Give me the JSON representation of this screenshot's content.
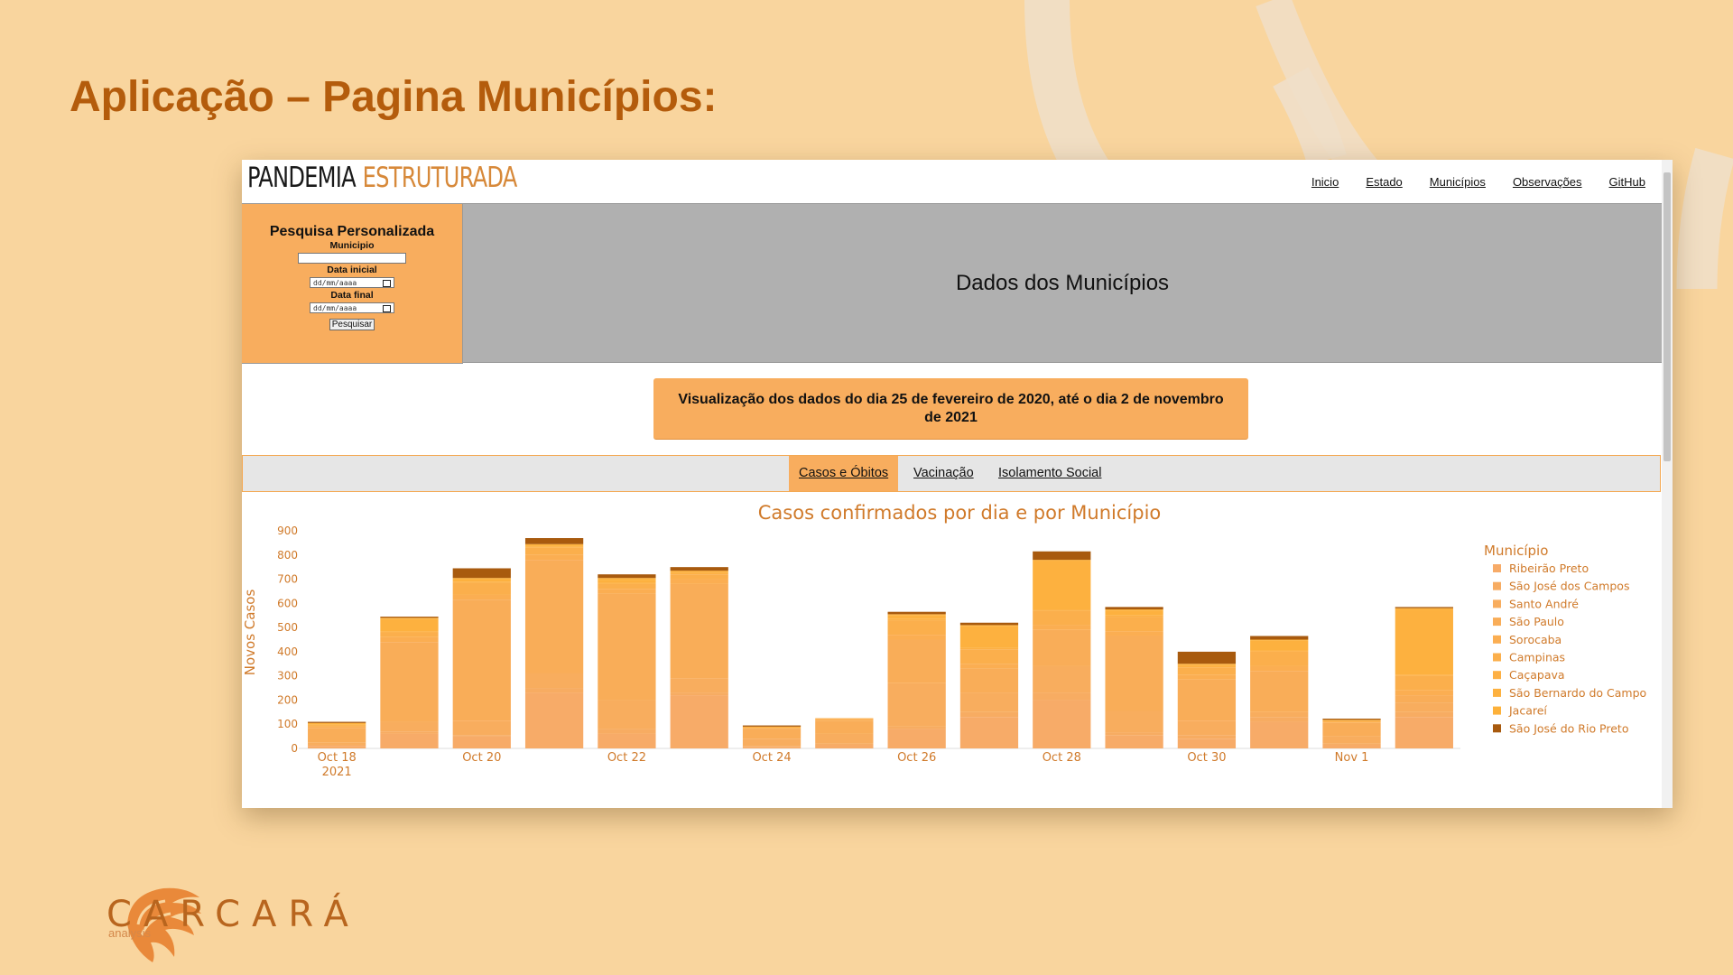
{
  "slide": {
    "title": "Aplicação – Pagina Municípios:",
    "logo_text": "CARCARÁ",
    "logo_sub": "analysis"
  },
  "app": {
    "brand_dark": "PANDEMIA",
    "brand_light": "ESTRUTURADA",
    "nav": [
      "Inicio",
      "Estado",
      "Municípios",
      "Observações",
      "GitHub"
    ],
    "sidebar": {
      "title": "Pesquisa Personalizada",
      "municipio_label": "Municipio",
      "data_inicial_label": "Data inicial",
      "data_final_label": "Data final",
      "date_placeholder": "dd/mm/aaaa",
      "button": "Pesquisar"
    },
    "header_title": "Dados dos Municípios",
    "info_text": "Visualização dos dados do dia 25 de fevereiro de 2020, até o dia 2 de novembro de 2021",
    "tabs": [
      "Casos e Óbitos",
      "Vacinação",
      "Isolamento Social"
    ],
    "active_tab": 0
  },
  "colors": {
    "page_bg": "#f9d59e",
    "accent": "#f8ad5e",
    "title": "#b45c0c",
    "header_gray": "#b0b0b0"
  },
  "chart_data": {
    "type": "bar",
    "stacked": true,
    "title": "Casos confirmados por dia e por Município",
    "xlabel": "",
    "ylabel": "Novos Casos",
    "ylim": [
      0,
      900
    ],
    "yticks": [
      0,
      100,
      200,
      300,
      400,
      500,
      600,
      700,
      800,
      900
    ],
    "x_tick_labels": [
      "Oct 18\n2021",
      "Oct 20",
      "Oct 22",
      "Oct 24",
      "Oct 26",
      "Oct 28",
      "Oct 30",
      "Nov 1"
    ],
    "legend_title": "Município",
    "legend_position": "right",
    "categories": [
      "2021-10-18",
      "2021-10-19",
      "2021-10-20",
      "2021-10-21",
      "2021-10-22",
      "2021-10-23",
      "2021-10-24",
      "2021-10-25",
      "2021-10-26",
      "2021-10-27",
      "2021-10-28",
      "2021-10-29",
      "2021-10-30",
      "2021-10-31",
      "2021-11-01",
      "2021-11-02"
    ],
    "series": [
      {
        "name": "Ribeirão Preto",
        "color": "#f7ab68",
        "values": [
          10,
          60,
          50,
          230,
          60,
          220,
          5,
          15,
          80,
          130,
          200,
          55,
          40,
          110,
          15,
          130
        ]
      },
      {
        "name": "São José dos Campos",
        "color": "#f7ac62",
        "values": [
          5,
          10,
          5,
          20,
          20,
          10,
          5,
          5,
          10,
          20,
          30,
          10,
          15,
          20,
          5,
          20
        ]
      },
      {
        "name": "Santo André",
        "color": "#f8ad5e",
        "values": [
          10,
          40,
          60,
          60,
          120,
          60,
          30,
          40,
          180,
          80,
          110,
          90,
          60,
          20,
          30,
          40
        ]
      },
      {
        "name": "São Paulo",
        "color": "#f9ad58",
        "values": [
          60,
          330,
          500,
          470,
          440,
          390,
          40,
          55,
          180,
          100,
          150,
          310,
          170,
          170,
          55,
          30
        ]
      },
      {
        "name": "Sorocaba",
        "color": "#fbae52",
        "values": [
          5,
          20,
          20,
          20,
          20,
          20,
          5,
          5,
          20,
          20,
          20,
          20,
          20,
          20,
          3,
          20
        ]
      },
      {
        "name": "Campinas",
        "color": "#fbaf4c",
        "values": [
          5,
          20,
          50,
          30,
          20,
          20,
          0,
          5,
          60,
          60,
          60,
          60,
          30,
          60,
          5,
          60
        ]
      },
      {
        "name": "Caçapava",
        "color": "#fdb044",
        "values": [
          0,
          5,
          5,
          5,
          5,
          5,
          0,
          0,
          5,
          5,
          5,
          5,
          5,
          5,
          0,
          5
        ]
      },
      {
        "name": "São Bernardo do Campo",
        "color": "#fdb13f",
        "values": [
          5,
          50,
          10,
          5,
          10,
          5,
          5,
          0,
          15,
          90,
          200,
          20,
          5,
          40,
          5,
          270
        ]
      },
      {
        "name": "Jacareí",
        "color": "#fdb13a",
        "values": [
          5,
          5,
          5,
          5,
          10,
          5,
          0,
          0,
          5,
          5,
          5,
          5,
          5,
          5,
          0,
          5
        ]
      },
      {
        "name": "São José do Rio Preto",
        "color": "#a85a0e",
        "values": [
          5,
          5,
          40,
          25,
          15,
          15,
          5,
          0,
          10,
          10,
          35,
          10,
          50,
          15,
          5,
          5
        ]
      }
    ]
  }
}
